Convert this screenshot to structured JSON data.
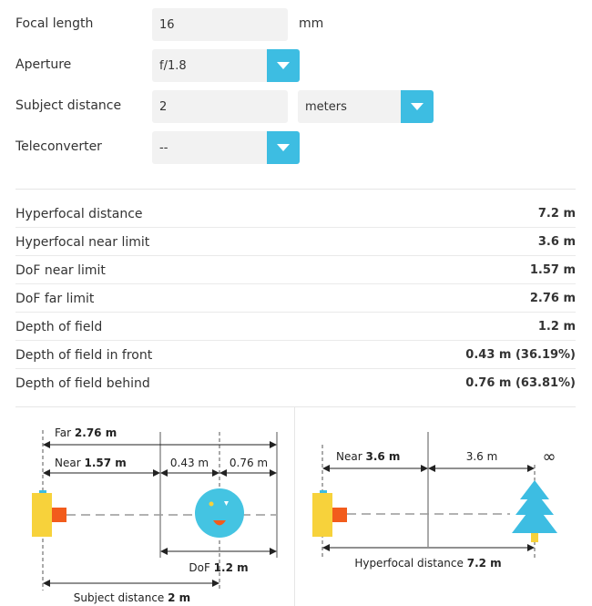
{
  "form": {
    "focal_length": {
      "label": "Focal length",
      "value": "16",
      "unit": "mm"
    },
    "aperture": {
      "label": "Aperture",
      "value": "f/1.8"
    },
    "subject_distance": {
      "label": "Subject distance",
      "value": "2",
      "unit": "meters"
    },
    "teleconverter": {
      "label": "Teleconverter",
      "value": "--"
    }
  },
  "results": [
    {
      "label": "Hyperfocal distance",
      "value": "7.2 m"
    },
    {
      "label": "Hyperfocal near limit",
      "value": "3.6 m"
    },
    {
      "label": "DoF near limit",
      "value": "1.57 m"
    },
    {
      "label": "DoF far limit",
      "value": "2.76 m"
    },
    {
      "label": "Depth of field",
      "value": "1.2 m"
    },
    {
      "label": "Depth of field in front",
      "value": "0.43 m (36.19%)"
    },
    {
      "label": "Depth of field behind",
      "value": "0.76 m (63.81%)"
    }
  ],
  "diagram_dof": {
    "far_label": "Far",
    "far_value": "2.76 m",
    "near_label": "Near",
    "near_value": "1.57 m",
    "front": "0.43 m",
    "behind": "0.76 m",
    "dof_label": "DoF",
    "dof_value": "1.2 m",
    "subject_label": "Subject distance",
    "subject_value": "2 m"
  },
  "diagram_hyperfocal": {
    "near_label": "Near",
    "near_value": "3.6 m",
    "between": "3.6 m",
    "infinity": "∞",
    "hyper_label": "Hyperfocal distance",
    "hyper_value": "7.2 m"
  },
  "colors": {
    "accent": "#3dbde2",
    "camera_body": "#f7d23b",
    "camera_lens": "#f25c1c",
    "face": "#44c4e2",
    "tree": "#3dbde2",
    "trunk": "#f7d23b"
  }
}
